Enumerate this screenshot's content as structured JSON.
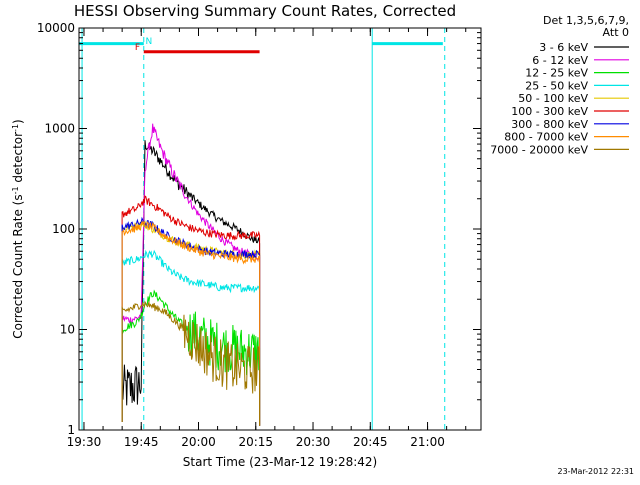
{
  "title": "HESSI Observing Summary Count Rates, Corrected",
  "footer_date": "23-Mar-2012 22:31",
  "chart_data": {
    "type": "line",
    "title": "HESSI Observing Summary Count Rates, Corrected",
    "xlabel": "Start Time (23-Mar-12 19:28:42)",
    "ylabel_main": "Corrected Count Rate (s",
    "ylabel_sup1": "-1",
    "ylabel_mid": " detector",
    "ylabel_sup2": "-1",
    "ylabel_end": ")",
    "y_scale": "log",
    "ylim": [
      1,
      10000
    ],
    "xlim": [
      "19:28:42",
      "21:14"
    ],
    "x_ticks": [
      "19:30",
      "19:45",
      "20:00",
      "20:15",
      "20:30",
      "20:45",
      "21:00"
    ],
    "y_ticks": [
      "1",
      "10",
      "100",
      "1000",
      "10000"
    ],
    "legend_position": "outside-right",
    "legend_header": [
      "Det 1,3,5,6,7,9,",
      "Att 0"
    ],
    "flags": [
      {
        "name": "night",
        "color": "#00e5e5",
        "intervals": [
          [
            "19:28:42",
            "19:45:40"
          ],
          [
            "20:45:30",
            "21:04"
          ]
        ],
        "level": 7000
      },
      {
        "name": "flare",
        "label": "F",
        "color": "#e00000",
        "intervals": [
          [
            "19:45:40",
            "20:16"
          ]
        ],
        "level": 5800
      }
    ],
    "flag_labels": [
      {
        "text": "N",
        "x": "19:47:00",
        "color": "#00e5e5"
      },
      {
        "text": "F",
        "x": "19:44:00",
        "color": "#e00000"
      }
    ],
    "night_lines": [
      {
        "x": "19:29:30",
        "style": "solid"
      },
      {
        "x": "19:45:40",
        "style": "dashed"
      },
      {
        "x": "20:45:30",
        "style": "solid"
      },
      {
        "x": "21:04:30",
        "style": "dashed"
      }
    ],
    "x_times": [
      "19:40",
      "19:42",
      "19:44",
      "19:45",
      "19:46",
      "19:48",
      "19:50",
      "19:52",
      "19:54",
      "19:56",
      "19:58",
      "20:00",
      "20:02",
      "20:04",
      "20:06",
      "20:08",
      "20:10",
      "20:12",
      "20:14",
      "20:16"
    ],
    "series": [
      {
        "name": "3 - 6 keV",
        "color": "#000000",
        "values": [
          2.5,
          2.6,
          2.8,
          3.0,
          700,
          600,
          480,
          380,
          300,
          250,
          210,
          180,
          155,
          135,
          120,
          110,
          100,
          90,
          80,
          75
        ]
      },
      {
        "name": "6 - 12 keV",
        "color": "#e000e0",
        "values": [
          13,
          12.5,
          13,
          14,
          400,
          1000,
          650,
          450,
          320,
          240,
          180,
          140,
          115,
          95,
          80,
          70,
          62,
          58,
          55,
          52
        ]
      },
      {
        "name": "12 - 25 keV",
        "color": "#00e000",
        "values": [
          10,
          11,
          12,
          14,
          18,
          23,
          20,
          16,
          13,
          11,
          9.5,
          8.5,
          7.8,
          7.2,
          6.8,
          6.5,
          6.3,
          6.1,
          6.0,
          6.0
        ]
      },
      {
        "name": "25 - 50 keV",
        "color": "#00e5e5",
        "values": [
          45,
          48,
          50,
          52,
          55,
          57,
          48,
          40,
          35,
          32,
          30,
          29,
          28,
          27,
          26,
          26,
          26,
          26,
          26,
          26
        ]
      },
      {
        "name": "50 - 100 keV",
        "color": "#e5c800",
        "values": [
          100,
          104,
          108,
          115,
          110,
          100,
          90,
          82,
          76,
          72,
          68,
          65,
          62,
          60,
          58,
          57,
          56,
          55,
          55,
          55
        ]
      },
      {
        "name": "100 - 300 keV",
        "color": "#e00000",
        "values": [
          140,
          150,
          160,
          180,
          195,
          175,
          155,
          135,
          120,
          110,
          102,
          96,
          92,
          89,
          87,
          86,
          86,
          86,
          86,
          86
        ]
      },
      {
        "name": "300 - 800 keV",
        "color": "#0000e0",
        "values": [
          105,
          108,
          112,
          118,
          115,
          108,
          95,
          85,
          78,
          72,
          67,
          63,
          60,
          58,
          57,
          56,
          56,
          56,
          56,
          56
        ]
      },
      {
        "name": "800 - 7000 keV",
        "color": "#ff8c00",
        "values": [
          95,
          98,
          102,
          108,
          110,
          104,
          92,
          82,
          75,
          69,
          64,
          60,
          57,
          55,
          53,
          52,
          51,
          50,
          50,
          50
        ]
      },
      {
        "name": "7000 - 20000 keV",
        "color": "#a07800",
        "values": [
          15,
          16,
          17,
          18,
          18,
          17,
          16,
          14,
          12,
          10,
          8.5,
          7,
          6,
          5.2,
          4.6,
          4.3,
          4.1,
          4.0,
          4.0,
          4.0
        ]
      }
    ]
  }
}
